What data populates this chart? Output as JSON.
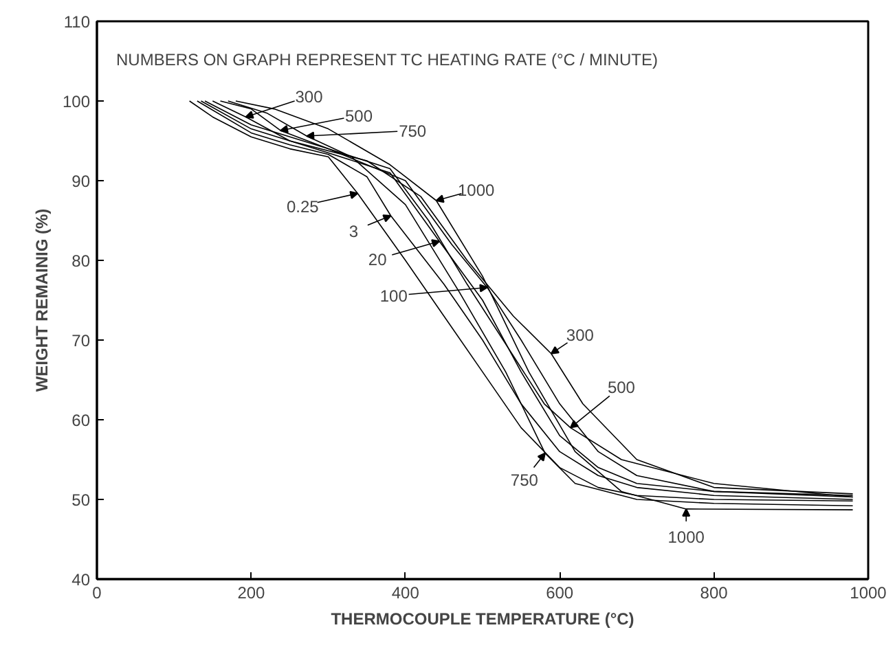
{
  "chart_data": {
    "type": "line",
    "xlabel": "THERMOCOUPLE TEMPERATURE (°C)",
    "ylabel": "WEIGHT REMAINIG (%)",
    "xlim": [
      0,
      1000
    ],
    "ylim": [
      40,
      110
    ],
    "xticks": [
      0,
      200,
      400,
      600,
      800,
      1000
    ],
    "yticks": [
      40,
      50,
      60,
      70,
      80,
      90,
      100,
      110
    ],
    "grid": false,
    "marker": "none",
    "line_style": "solid",
    "series": [
      {
        "color": "#000000",
        "x": [
          120,
          150,
          200,
          250,
          300,
          338,
          400,
          450,
          500,
          550,
          600,
          650,
          700,
          800,
          980
        ],
        "values": [
          100,
          98,
          95.5,
          94,
          93,
          88.4,
          80,
          73,
          66,
          59,
          54,
          51.5,
          50.5,
          50,
          49.8
        ]
      },
      {
        "color": "#000000",
        "x": [
          130,
          200,
          250,
          300,
          350,
          381,
          450,
          500,
          550,
          600,
          650,
          700,
          800,
          980
        ],
        "values": [
          100,
          96,
          94.5,
          93.3,
          90.5,
          85.6,
          77,
          70,
          62,
          56,
          53,
          51.5,
          50.5,
          50
        ]
      },
      {
        "color": "#000000",
        "x": [
          135,
          200,
          300,
          380,
          444,
          500,
          550,
          600,
          650,
          700,
          800,
          980
        ],
        "values": [
          100,
          96.5,
          93.5,
          91,
          82.4,
          75,
          66,
          58,
          54,
          52,
          51,
          50.3
        ]
      },
      {
        "color": "#000000",
        "x": [
          140,
          200,
          300,
          400,
          460,
          506,
          550,
          600,
          650,
          700,
          800,
          980
        ],
        "values": [
          100,
          97,
          94,
          90,
          82,
          76.6,
          70,
          62,
          56,
          53,
          51,
          50.5
        ]
      },
      {
        "color": "#000000",
        "x": [
          150,
          193,
          250,
          350,
          420,
          480,
          540,
          589,
          630,
          700,
          800,
          980
        ],
        "values": [
          100,
          98,
          95,
          92.5,
          88,
          80,
          73,
          68.3,
          62,
          55,
          51.5,
          50.7
        ]
      },
      {
        "color": "#000000",
        "x": [
          160,
          200,
          238,
          300,
          380,
          430,
          480,
          540,
          580,
          614,
          680,
          800,
          980
        ],
        "values": [
          100,
          99,
          96.3,
          94,
          91.5,
          85,
          77,
          68,
          62,
          59,
          55,
          52,
          50.3
        ]
      },
      {
        "color": "#000000",
        "x": [
          170,
          220,
          272,
          330,
          400,
          470,
          530,
          581,
          620,
          700,
          800,
          980
        ],
        "values": [
          100,
          98.5,
          95.6,
          93,
          87,
          76,
          66,
          55.8,
          52,
          50,
          49.5,
          49.2
        ]
      },
      {
        "color": "#000000",
        "x": [
          180,
          230,
          300,
          380,
          440,
          500,
          560,
          620,
          680,
          764,
          980
        ],
        "values": [
          100,
          99,
          96.5,
          92,
          87.5,
          78,
          66,
          56,
          51,
          48.8,
          48.7
        ]
      }
    ],
    "annotations": [
      "NUMBERS ON GRAPH REPRESENT TC HEATING RATE (°C / MINUTE)",
      {
        "text": "300",
        "x": 193,
        "y": 98.0
      },
      {
        "text": "500",
        "x": 238,
        "y": 96.3
      },
      {
        "text": "750",
        "x": 272,
        "y": 95.6
      },
      {
        "text": "1000",
        "x": 440,
        "y": 87.5
      },
      {
        "text": "0.25",
        "x": 338,
        "y": 88.4
      },
      {
        "text": "3",
        "x": 381,
        "y": 85.6
      },
      {
        "text": "20",
        "x": 444,
        "y": 82.4
      },
      {
        "text": "100",
        "x": 506,
        "y": 76.6
      },
      {
        "text": "300",
        "x": 589,
        "y": 68.3
      },
      {
        "text": "500",
        "x": 614,
        "y": 59.0
      },
      {
        "text": "750",
        "x": 581,
        "y": 55.8
      },
      {
        "text": "1000",
        "x": 764,
        "y": 48.8
      }
    ]
  }
}
